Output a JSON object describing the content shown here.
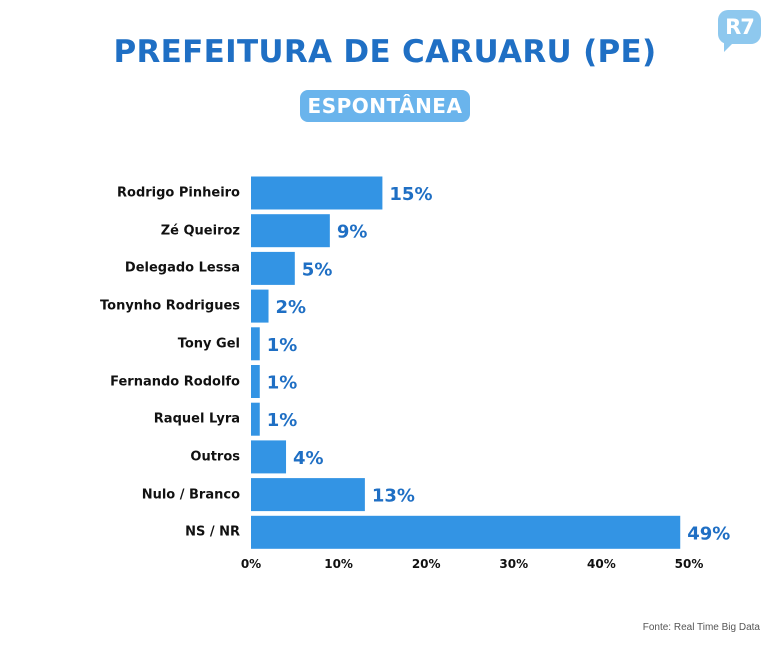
{
  "brand": {
    "logo_text": "R7"
  },
  "header": {
    "title": "PREFEITURA DE CARUARU (PE)",
    "badge": "ESPONTÂNEA"
  },
  "footer": {
    "source": "Fonte: Real Time Big Data"
  },
  "colors": {
    "bar": "#3394e4",
    "value": "#1f6fc4",
    "title": "#1f6fc4",
    "badge": "#6ab4ec"
  },
  "chart_data": {
    "type": "bar",
    "orientation": "horizontal",
    "categories": [
      "Rodrigo Pinheiro",
      "Zé Queiroz",
      "Delegado Lessa",
      "Tonynho Rodrigues",
      "Tony Gel",
      "Fernando Rodolfo",
      "Raquel Lyra",
      "Outros",
      "Nulo / Branco",
      "NS / NR"
    ],
    "values": [
      15,
      9,
      5,
      2,
      1,
      1,
      1,
      4,
      13,
      49
    ],
    "value_labels": [
      "15%",
      "9%",
      "5%",
      "2%",
      "1%",
      "1%",
      "1%",
      "4%",
      "13%",
      "49%"
    ],
    "xlim": [
      0,
      50
    ],
    "xticks": [
      "0%",
      "10%",
      "20%",
      "30%",
      "40%",
      "50%"
    ],
    "grid": false,
    "legend": "none"
  }
}
